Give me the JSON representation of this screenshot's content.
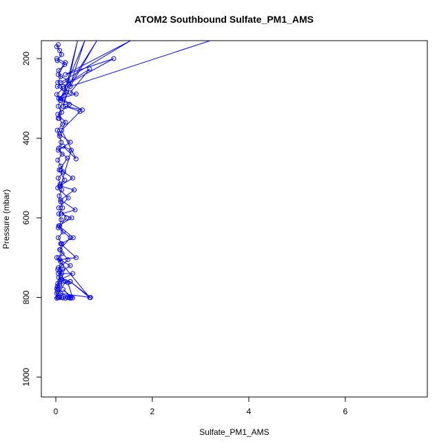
{
  "chart_data": {
    "type": "line",
    "title": "ATOM2 Southbound Sulfate_PM1_AMS",
    "xlabel": "Sulfate_PM1_AMS",
    "ylabel": "Pressure (mbar)",
    "xlim": [
      -0.3,
      7.7
    ],
    "ylim": [
      1050,
      155
    ],
    "y_reversed": true,
    "x_ticks": [
      0,
      2,
      4,
      6
    ],
    "y_ticks": [
      200,
      400,
      600,
      800,
      1000
    ],
    "grid": false,
    "legend": "none",
    "series_color": "#0000ff",
    "marker": "open-circle",
    "series": [
      {
        "x": [
          0.05,
          0.02,
          0.08,
          0.12,
          0.03,
          0.18,
          0.06,
          0.1,
          0.04,
          0.15,
          0.02,
          0.09,
          0.05,
          0.12,
          0.07,
          0.14,
          0.03,
          0.08,
          0.11,
          0.06,
          0.13,
          0.04,
          0.1,
          0.16,
          0.05,
          0.09,
          0.12,
          0.07,
          0.1,
          0.14,
          0.06,
          0.11,
          0.08,
          0.15,
          0.05,
          0.12,
          0.09,
          0.13,
          0.06,
          0.1,
          0.12,
          0.05,
          0.14,
          0.08,
          0.12,
          0.1,
          0.06,
          0.12,
          0.08,
          0.04,
          0.08,
          0.03,
          0.05,
          0.02,
          0.04,
          0.03,
          0.02,
          0.05,
          0.04,
          0.02
        ],
        "y": [
          165,
          170,
          180,
          190,
          205,
          215,
          230,
          245,
          260,
          275,
          290,
          305,
          320,
          335,
          350,
          365,
          380,
          395,
          410,
          425,
          440,
          455,
          470,
          485,
          500,
          515,
          530,
          545,
          560,
          575,
          590,
          605,
          620,
          635,
          650,
          665,
          680,
          690,
          700,
          710,
          720,
          725,
          730,
          735,
          740,
          745,
          750,
          755,
          760,
          765,
          770,
          772,
          775,
          778,
          780,
          785,
          790,
          795,
          800,
          802
        ]
      },
      {
        "x": [
          0.02,
          0.2,
          0.05,
          0.25,
          0.03,
          0.22,
          0.06,
          0.28,
          0.04,
          0.2,
          0.08,
          0.3,
          0.05,
          0.24,
          0.07,
          0.18,
          0.04,
          0.26,
          0.06,
          0.22,
          0.05,
          0.3,
          0.08,
          0.25,
          0.04,
          0.2,
          0.06
        ],
        "y": [
          200,
          210,
          240,
          255,
          270,
          285,
          300,
          315,
          340,
          360,
          390,
          410,
          430,
          450,
          480,
          505,
          525,
          550,
          575,
          600,
          625,
          650,
          680,
          705,
          730,
          760,
          790
        ]
      },
      {
        "x": [
          0.1,
          1.55,
          0.2,
          1.2,
          0.15,
          0.7,
          0.3,
          0.42,
          0.1,
          0.55,
          0.2,
          0.5,
          0.12,
          0.42,
          0.15,
          0.32,
          0.1
        ],
        "y": [
          260,
          155,
          240,
          200,
          270,
          226,
          285,
          289,
          300,
          329,
          320,
          333,
          380,
          452,
          420,
          430,
          520
        ]
      },
      {
        "x": [
          3.2,
          0.3,
          0.85,
          0.1,
          0.6,
          0.15,
          0.45,
          0.05
        ],
        "y": [
          155,
          270,
          155,
          300,
          155,
          320,
          155,
          350
        ]
      },
      {
        "x": [
          0.1,
          0.35,
          0.08,
          0.38,
          0.1,
          0.4,
          0.12,
          0.33,
          0.06,
          0.36,
          0.1,
          0.42,
          0.08,
          0.3,
          0.05,
          0.35,
          0.1,
          0.3,
          0.08
        ],
        "y": [
          480,
          500,
          520,
          530,
          555,
          580,
          590,
          600,
          620,
          650,
          665,
          700,
          705,
          720,
          740,
          740,
          755,
          760,
          765
        ]
      },
      {
        "x": [
          0.02,
          0.7,
          0.3,
          0.72,
          0.1,
          0.32,
          0.15,
          0.35,
          0.25
        ],
        "y": [
          700,
          800,
          760,
          800,
          790,
          800,
          780,
          801,
          763
        ]
      },
      {
        "x": [
          0.05,
          0.08,
          0.12,
          0.15,
          0.2,
          0.25,
          0.28,
          0.3
        ],
        "y": [
          800,
          800,
          800,
          801,
          802,
          800,
          800,
          802
        ]
      }
    ]
  }
}
